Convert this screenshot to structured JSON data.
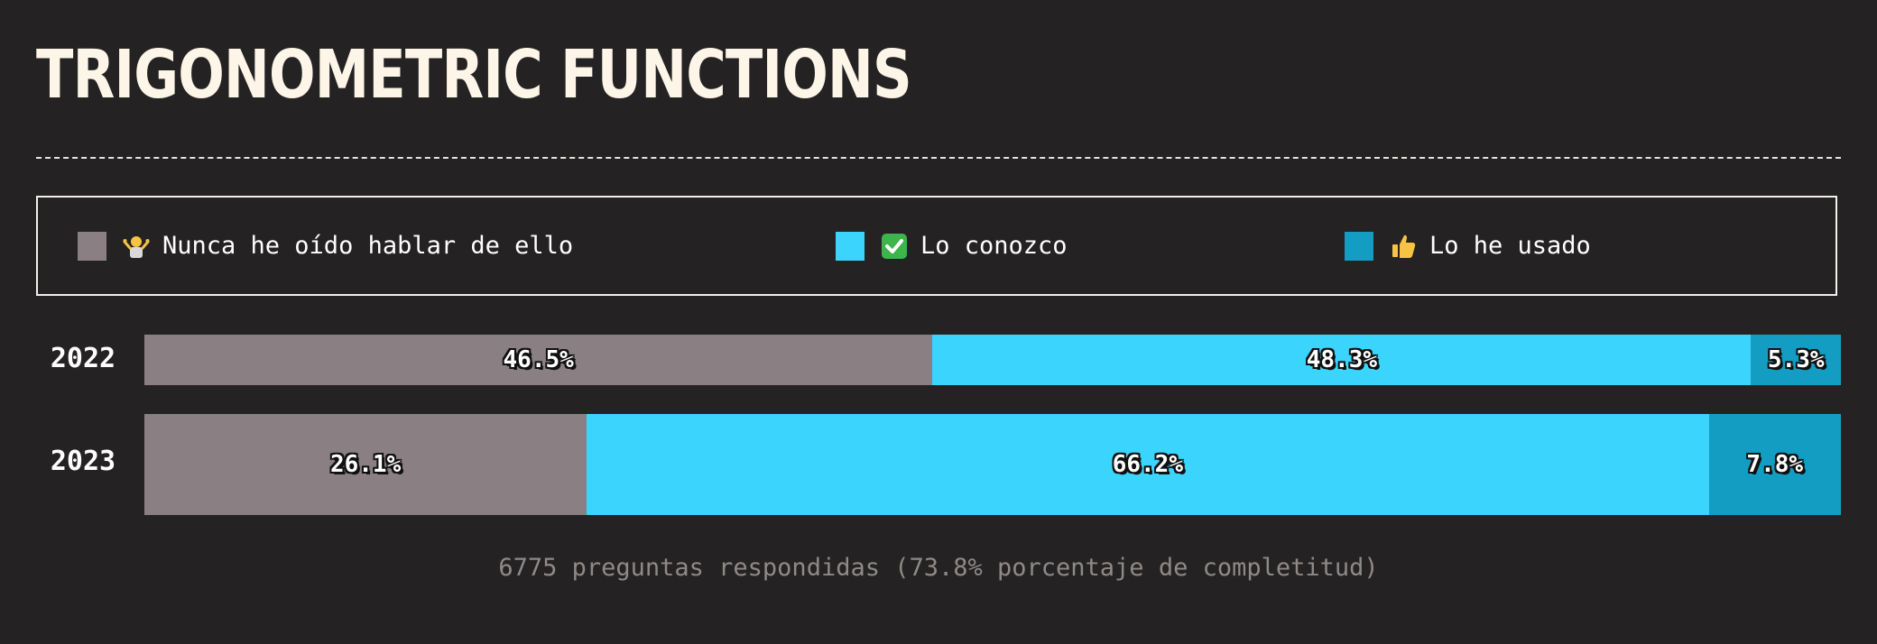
{
  "title": "TRIGONOMETRIC FUNCTIONS",
  "footer": "6775 preguntas respondidas (73.8% porcentaje de completitud)",
  "legend": [
    {
      "label": "Nunca he oído hablar de ello",
      "color": "#8a7f83",
      "icon": "shrug-icon"
    },
    {
      "label": "Lo conozco",
      "color": "#3ad4fd",
      "icon": "check-mark-icon"
    },
    {
      "label": "Lo he usado",
      "color": "#139dc3",
      "icon": "thumbs-up-icon"
    }
  ],
  "chart_data": {
    "type": "bar",
    "orientation": "horizontal",
    "stacked": true,
    "normalized": true,
    "categories": [
      "2022",
      "2023"
    ],
    "series": [
      {
        "name": "Nunca he oído hablar de ello",
        "color": "#8a7f83",
        "values": [
          46.5,
          26.1
        ],
        "labels": [
          "46.5%",
          "26.1%"
        ]
      },
      {
        "name": "Lo conozco",
        "color": "#3ad4fd",
        "values": [
          48.3,
          66.2
        ],
        "labels": [
          "48.3%",
          "66.2%"
        ]
      },
      {
        "name": "Lo he usado",
        "color": "#139dc3",
        "values": [
          5.3,
          7.8
        ],
        "labels": [
          "5.3%",
          "7.8%"
        ]
      }
    ],
    "emphasized_category": "2023"
  }
}
